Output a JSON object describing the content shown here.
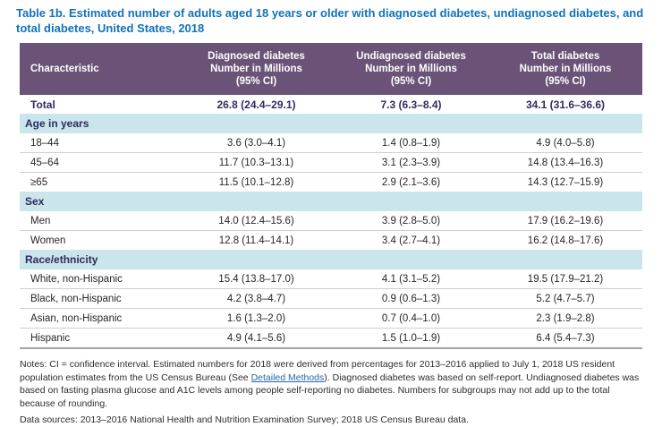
{
  "colors": {
    "title_blue": "#1272b8",
    "header_purple": "#6a5377",
    "section_band_blue": "#cbe5ec",
    "total_row_text": "#332a60",
    "body_text": "#262626",
    "link_blue": "#2467ae"
  },
  "title": "Table 1b. Estimated number of adults aged 18 years or older with diagnosed diabetes, undiagnosed diabetes, and total diabetes, United States, 2018",
  "table": {
    "header": {
      "characteristic": "Characteristic",
      "col1": "Diagnosed diabetes\nNumber in Millions\n(95% CI)",
      "col2": "Undiagnosed diabetes\nNumber in Millions\n(95% CI)",
      "col3": "Total diabetes\nNumber in Millions\n(95% CI)"
    },
    "rows": [
      {
        "type": "total",
        "label": "Total",
        "values": [
          "26.8 (24.4–29.1)",
          "7.3 (6.3–8.4)",
          "34.1 (31.6–36.6)"
        ]
      },
      {
        "type": "section",
        "label": "Age in years"
      },
      {
        "type": "data",
        "label": "18–44",
        "values": [
          "3.6 (3.0–4.1)",
          "1.4 (0.8–1.9)",
          "4.9 (4.0–5.8)"
        ]
      },
      {
        "type": "data",
        "label": "45–64",
        "values": [
          "11.7 (10.3–13.1)",
          "3.1 (2.3–3.9)",
          "14.8 (13.4–16.3)"
        ]
      },
      {
        "type": "data",
        "label": "≥65",
        "values": [
          "11.5 (10.1–12.8)",
          "2.9 (2.1–3.6)",
          "14.3 (12.7–15.9)"
        ]
      },
      {
        "type": "section",
        "label": "Sex"
      },
      {
        "type": "data",
        "label": "Men",
        "values": [
          "14.0 (12.4–15.6)",
          "3.9 (2.8–5.0)",
          "17.9 (16.2–19.6)"
        ]
      },
      {
        "type": "data",
        "label": "Women",
        "values": [
          "12.8 (11.4–14.1)",
          "3.4 (2.7–4.1)",
          "16.2 (14.8–17.6)"
        ]
      },
      {
        "type": "section",
        "label": "Race/ethnicity"
      },
      {
        "type": "data",
        "label": "White, non-Hispanic",
        "values": [
          "15.4 (13.8–17.0)",
          "4.1 (3.1–5.2)",
          "19.5 (17.9–21.2)"
        ]
      },
      {
        "type": "data",
        "label": "Black, non-Hispanic",
        "values": [
          "4.2 (3.8–4.7)",
          "0.9 (0.6–1.3)",
          "5.2 (4.7–5.7)"
        ]
      },
      {
        "type": "data",
        "label": "Asian, non-Hispanic",
        "values": [
          "1.6 (1.3–2.0)",
          "0.7 (0.4–1.0)",
          "2.3 (1.9–2.8)"
        ]
      },
      {
        "type": "data",
        "label": "Hispanic",
        "values": [
          "4.9 (4.1–5.6)",
          "1.5 (1.0–1.9)",
          "6.4 (5.4–7.3)"
        ]
      }
    ]
  },
  "notes": {
    "before_link": "Notes: CI = confidence interval. Estimated numbers for 2018 were derived from percentages for 2013–2016 applied to July 1, 2018 US resident population estimates from the US Census Bureau (See ",
    "link_label": "Detailed Methods",
    "after_link": "). Diagnosed diabetes was based on self-report. Undiagnosed diabetes was based on fasting plasma glucose and A1C levels among people self-reporting no diabetes. Numbers for subgroups may not add up to the total because of rounding.",
    "data_sources": "Data sources: 2013–2016 National Health and Nutrition Examination Survey; 2018 US Census Bureau data."
  }
}
